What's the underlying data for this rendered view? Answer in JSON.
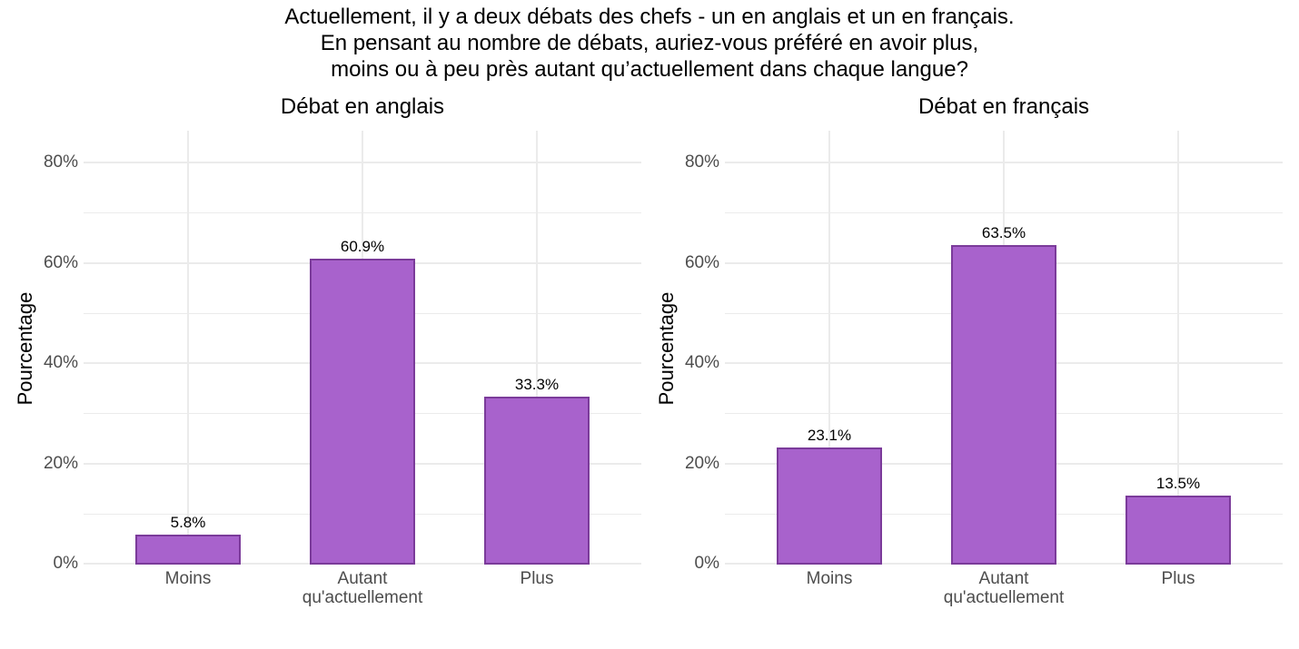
{
  "title": {
    "line1": "Actuellement, il y a deux débats des chefs - un en anglais et un en français.",
    "line2": "En pensant au nombre de débats, auriez-vous préféré en avoir plus,",
    "line3": "moins ou à peu près autant qu’actuellement dans chaque langue?"
  },
  "colors": {
    "bar_fill": "#a862cc",
    "bar_border": "#7b3b9a",
    "grid": "#ebebeb"
  },
  "chart_data": [
    {
      "type": "bar",
      "title": "Débat en anglais",
      "xlabel": "",
      "ylabel": "Pourcentage",
      "categories": [
        "Moins",
        "Autant qu'actuellement",
        "Plus"
      ],
      "category_lines": [
        [
          "Moins"
        ],
        [
          "Autant",
          "qu'actuellement"
        ],
        [
          "Plus"
        ]
      ],
      "values": [
        5.8,
        60.9,
        33.3
      ],
      "value_labels": [
        "5.8%",
        "60.9%",
        "33.3%"
      ],
      "yticks": [
        "0%",
        "20%",
        "40%",
        "60%",
        "80%"
      ],
      "ylim": [
        0,
        86
      ],
      "grid": true,
      "legend": "none"
    },
    {
      "type": "bar",
      "title": "Débat en français",
      "xlabel": "",
      "ylabel": "Pourcentage",
      "categories": [
        "Moins",
        "Autant qu'actuellement",
        "Plus"
      ],
      "category_lines": [
        [
          "Moins"
        ],
        [
          "Autant",
          "qu'actuellement"
        ],
        [
          "Plus"
        ]
      ],
      "values": [
        23.1,
        63.5,
        13.5
      ],
      "value_labels": [
        "23.1%",
        "63.5%",
        "13.5%"
      ],
      "yticks": [
        "0%",
        "20%",
        "40%",
        "60%",
        "80%"
      ],
      "ylim": [
        0,
        86
      ],
      "grid": true,
      "legend": "none"
    }
  ]
}
